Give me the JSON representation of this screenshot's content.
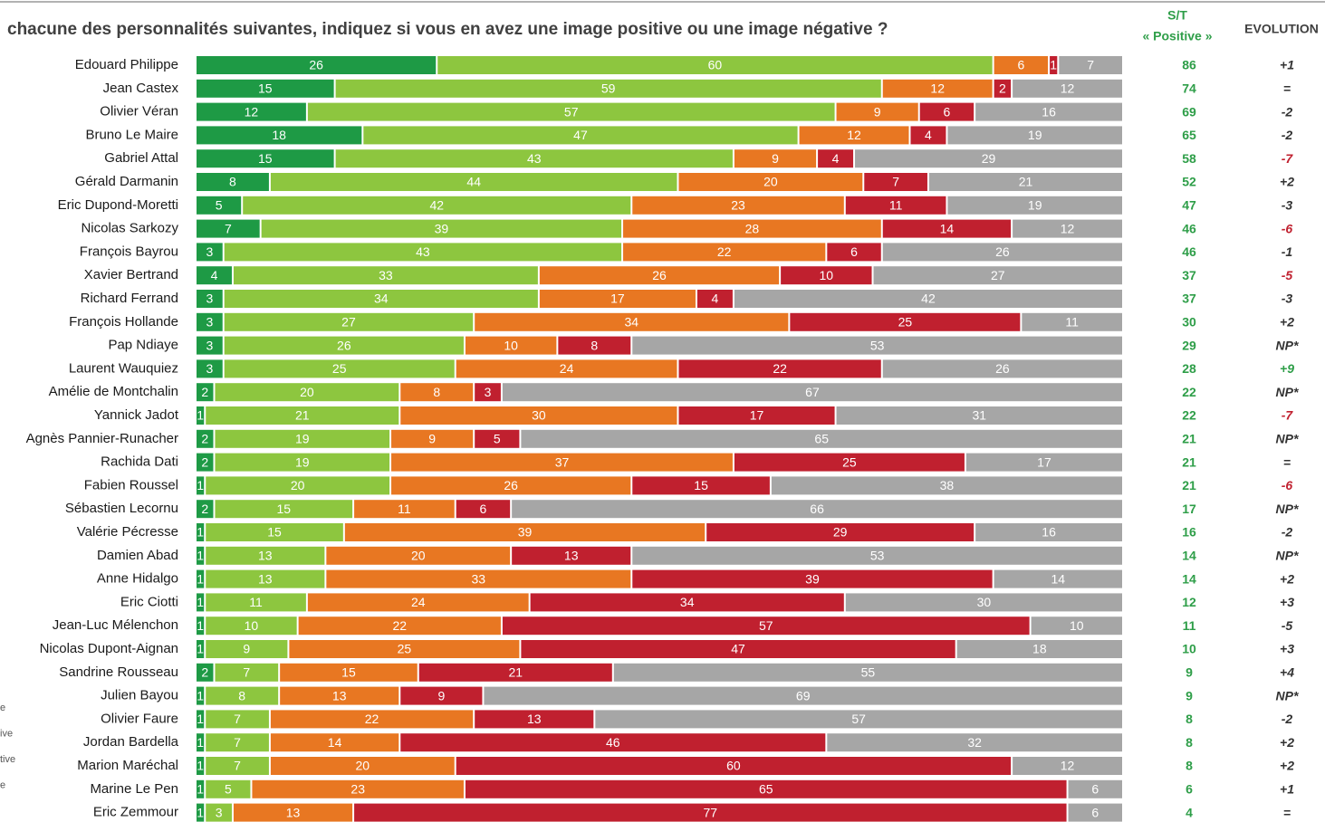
{
  "chart_data": {
    "type": "bar",
    "orientation": "horizontal",
    "stacked": true,
    "title": "chacune des personnalités suivantes, indiquez si vous en avez une image positive ou une image négative ?",
    "st_header": [
      "S/T",
      "« Positive »"
    ],
    "evolution_header": "EVOLUTION",
    "legend_labels": [
      "e",
      "ive",
      "tive",
      "e"
    ],
    "xlim": [
      0,
      100
    ],
    "categories": [
      "Edouard Philippe",
      "Jean Castex",
      "Olivier Véran",
      "Bruno Le Maire",
      "Gabriel Attal",
      "Gérald Darmanin",
      "Eric Dupond-Moretti",
      "Nicolas Sarkozy",
      "François Bayrou",
      "Xavier Bertrand",
      "Richard Ferrand",
      "François Hollande",
      "Pap Ndiaye",
      "Laurent Wauquiez",
      "Amélie de Montchalin",
      "Yannick Jadot",
      "Agnès Pannier-Runacher",
      "Rachida Dati",
      "Fabien Roussel",
      "Sébastien Lecornu",
      "Valérie Pécresse",
      "Damien Abad",
      "Anne Hidalgo",
      "Eric Ciotti",
      "Jean-Luc Mélenchon",
      "Nicolas Dupont-Aignan",
      "Sandrine Rousseau",
      "Julien Bayou",
      "Olivier Faure",
      "Jordan Bardella",
      "Marion Maréchal",
      "Marine Le Pen",
      "Eric Zemmour"
    ],
    "series": [
      {
        "color": "#1e9a45",
        "values": [
          26,
          15,
          12,
          18,
          15,
          8,
          5,
          7,
          3,
          4,
          3,
          3,
          3,
          3,
          2,
          1,
          2,
          2,
          1,
          2,
          1,
          1,
          1,
          1,
          1,
          1,
          2,
          1,
          1,
          1,
          1,
          1,
          1
        ]
      },
      {
        "color": "#8dc63f",
        "values": [
          60,
          59,
          57,
          47,
          43,
          44,
          42,
          39,
          43,
          33,
          34,
          27,
          26,
          25,
          20,
          21,
          19,
          19,
          20,
          15,
          15,
          13,
          13,
          11,
          10,
          9,
          7,
          8,
          7,
          7,
          7,
          5,
          3
        ]
      },
      {
        "color": "#e87722",
        "values": [
          6,
          12,
          9,
          12,
          9,
          20,
          23,
          28,
          22,
          26,
          17,
          34,
          10,
          24,
          8,
          30,
          9,
          37,
          26,
          11,
          39,
          20,
          33,
          24,
          22,
          25,
          15,
          13,
          22,
          14,
          20,
          23,
          13
        ]
      },
      {
        "color": "#c0202f",
        "values": [
          1,
          2,
          6,
          4,
          4,
          7,
          11,
          14,
          6,
          10,
          4,
          25,
          8,
          22,
          3,
          17,
          5,
          25,
          15,
          6,
          29,
          13,
          39,
          34,
          57,
          47,
          21,
          9,
          13,
          46,
          60,
          65,
          77
        ]
      },
      {
        "color": "#a6a6a6",
        "values": [
          7,
          12,
          16,
          19,
          29,
          21,
          19,
          12,
          26,
          27,
          42,
          11,
          53,
          26,
          67,
          31,
          65,
          17,
          38,
          66,
          16,
          53,
          14,
          30,
          10,
          18,
          55,
          69,
          57,
          32,
          12,
          6,
          6
        ]
      }
    ],
    "st_positive": [
      86,
      74,
      69,
      65,
      58,
      52,
      47,
      46,
      46,
      37,
      37,
      30,
      29,
      28,
      22,
      22,
      21,
      21,
      21,
      17,
      16,
      14,
      14,
      12,
      11,
      10,
      9,
      9,
      8,
      8,
      8,
      6,
      4
    ],
    "evolution": [
      "+1",
      "=",
      "-2",
      "-2",
      "-7",
      "+2",
      "-3",
      "-6",
      "-1",
      "-5",
      "-3",
      "+2",
      "NP*",
      "+9",
      "NP*",
      "-7",
      "NP*",
      "=",
      "-6",
      "NP*",
      "-2",
      "NP*",
      "+2",
      "+3",
      "-5",
      "+3",
      "+4",
      "NP*",
      "-2",
      "+2",
      "+2",
      "+1",
      "="
    ],
    "evolution_colors": [
      "#333",
      "#333",
      "#333",
      "#333",
      "#c0202f",
      "#333",
      "#333",
      "#c0202f",
      "#333",
      "#c0202f",
      "#333",
      "#333",
      "#333",
      "#2e9e48",
      "#333",
      "#c0202f",
      "#333",
      "#333",
      "#c0202f",
      "#333",
      "#333",
      "#333",
      "#333",
      "#333",
      "#333",
      "#333",
      "#333",
      "#333",
      "#333",
      "#333",
      "#333",
      "#333",
      "#333"
    ]
  }
}
